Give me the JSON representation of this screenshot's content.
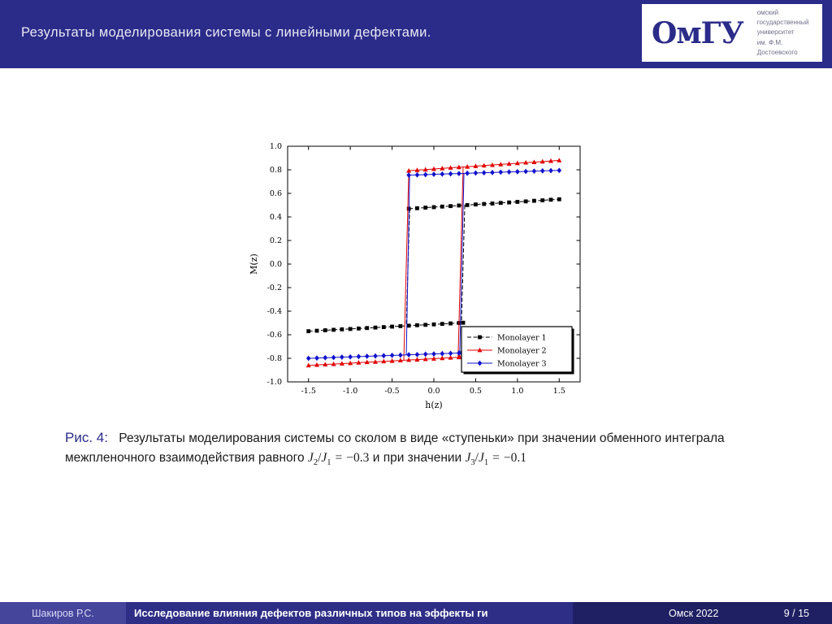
{
  "colors": {
    "accent": "#2b2b8a",
    "header_bg": "#2b2b8a",
    "footer_author_bg": "#45459c",
    "footer_title_bg": "#2e2e86",
    "footer_right_bg": "#1f1f63",
    "series_black": "#000000",
    "series_red": "#e00000",
    "series_blue": "#1212cc"
  },
  "header": {
    "title": "Результаты моделирования системы с линейными дефектами."
  },
  "logo": {
    "glyph": "ОмГУ",
    "lines": [
      "омский",
      "государственный",
      "университет",
      "им. Ф.М. Достоевского"
    ]
  },
  "caption": {
    "label": "Рис. 4:",
    "part1": "Результаты моделирования системы со сколом в виде «ступеньки» при значении обменного интеграла межпленочного взаимодействия равного",
    "math1": {
      "a": "J",
      "a_sub": "2",
      "slash": "/",
      "b": "J",
      "b_sub": "1",
      "eq": "=",
      "value": "−0.3"
    },
    "part2": "и при значении",
    "math2": {
      "a": "J",
      "a_sub": "3",
      "slash": "/",
      "b": "J",
      "b_sub": "1",
      "eq": "=",
      "value": "−0.1"
    }
  },
  "footer": {
    "author": "Шакиров Р.С.",
    "talk_title": "Исследование влияния дефектов различных типов на эффекты ги",
    "venue": "Омск 2022",
    "page": "9 / 15"
  },
  "chart_data": {
    "type": "line",
    "title": "",
    "xlabel": "h(z)",
    "ylabel": "M(z)",
    "xlim": [
      -1.75,
      1.75
    ],
    "ylim": [
      -1.0,
      1.0
    ],
    "grid": false,
    "xticks": [
      -1.5,
      -1.0,
      -0.5,
      0.0,
      0.5,
      1.0,
      1.5
    ],
    "xtick_labels": [
      "-1.5",
      "-1.0",
      "-0.5",
      "0.0",
      "0.5",
      "1.0",
      "1.5"
    ],
    "yticks": [
      -1.0,
      -0.8,
      -0.6,
      -0.4,
      -0.2,
      0.0,
      0.2,
      0.4,
      0.6,
      0.8,
      1.0
    ],
    "ytick_labels": [
      "-1.0",
      "-0.8",
      "-0.6",
      "-0.4",
      "-0.2",
      "0.0",
      "0.2",
      "0.4",
      "0.6",
      "0.8",
      "1.0"
    ],
    "legend": {
      "position": "lower right",
      "entries": [
        "Monolayer 1",
        "Monolayer 2",
        "Monolayer 3"
      ]
    },
    "series": [
      {
        "name": "Monolayer 1",
        "color": "#000000",
        "marker": "square",
        "dash": "5 2.6",
        "branches": [
          {
            "x": [
              -1.5,
              -1.4,
              -1.3,
              -1.2,
              -1.1,
              -1.0,
              -0.9,
              -0.8,
              -0.7,
              -0.6,
              -0.5,
              -0.4,
              -0.3,
              -0.2,
              -0.1,
              0.0,
              0.1,
              0.2,
              0.3,
              0.35
            ],
            "y": [
              -0.57,
              -0.566,
              -0.562,
              -0.558,
              -0.554,
              -0.551,
              -0.547,
              -0.543,
              -0.539,
              -0.535,
              -0.531,
              -0.527,
              -0.523,
              -0.519,
              -0.516,
              -0.512,
              -0.508,
              -0.504,
              -0.5,
              -0.498
            ]
          },
          {
            "x": [
              -0.3,
              -0.2,
              -0.1,
              0.0,
              0.1,
              0.2,
              0.3,
              0.4,
              0.5,
              0.6,
              0.7,
              0.8,
              0.9,
              1.0,
              1.1,
              1.2,
              1.3,
              1.4,
              1.5
            ],
            "y": [
              0.47,
              0.474,
              0.479,
              0.483,
              0.488,
              0.492,
              0.497,
              0.501,
              0.506,
              0.51,
              0.514,
              0.519,
              0.523,
              0.528,
              0.532,
              0.537,
              0.541,
              0.546,
              0.55
            ]
          }
        ],
        "transitions": [
          [
            -0.29,
            0.47,
            -0.33,
            -0.522
          ],
          [
            0.37,
            0.5,
            0.33,
            -0.499
          ]
        ]
      },
      {
        "name": "Monolayer 2",
        "color": "#e00000",
        "marker": "triangle",
        "dash": null,
        "branches": [
          {
            "x": [
              -1.5,
              -1.4,
              -1.3,
              -1.2,
              -1.1,
              -1.0,
              -0.9,
              -0.8,
              -0.7,
              -0.6,
              -0.5,
              -0.4,
              -0.3,
              -0.2,
              -0.1,
              0.0,
              0.1,
              0.2,
              0.3,
              0.31
            ],
            "y": [
              -0.86,
              -0.856,
              -0.852,
              -0.849,
              -0.845,
              -0.841,
              -0.837,
              -0.833,
              -0.83,
              -0.826,
              -0.822,
              -0.818,
              -0.814,
              -0.811,
              -0.807,
              -0.803,
              -0.799,
              -0.795,
              -0.791,
              -0.789
            ]
          },
          {
            "x": [
              -0.3,
              -0.2,
              -0.1,
              0.0,
              0.1,
              0.2,
              0.3,
              0.4,
              0.5,
              0.6,
              0.7,
              0.8,
              0.9,
              1.0,
              1.1,
              1.2,
              1.3,
              1.4,
              1.5
            ],
            "y": [
              0.792,
              0.797,
              0.802,
              0.807,
              0.812,
              0.817,
              0.822,
              0.826,
              0.831,
              0.836,
              0.841,
              0.846,
              0.851,
              0.856,
              0.861,
              0.865,
              0.87,
              0.875,
              0.88
            ]
          }
        ],
        "transitions": [
          [
            -0.3,
            0.792,
            -0.36,
            -0.815
          ],
          [
            0.35,
            0.824,
            0.29,
            -0.79
          ]
        ]
      },
      {
        "name": "Monolayer 3",
        "color": "#1212cc",
        "marker": "diamond",
        "dash": null,
        "branches": [
          {
            "x": [
              -1.5,
              -1.4,
              -1.3,
              -1.2,
              -1.1,
              -1.0,
              -0.9,
              -0.8,
              -0.7,
              -0.6,
              -0.5,
              -0.4,
              -0.3,
              -0.2,
              -0.1,
              0.0,
              0.1,
              0.2,
              0.3,
              0.33
            ],
            "y": [
              -0.8,
              -0.798,
              -0.795,
              -0.793,
              -0.79,
              -0.788,
              -0.785,
              -0.783,
              -0.78,
              -0.778,
              -0.775,
              -0.773,
              -0.77,
              -0.768,
              -0.765,
              -0.763,
              -0.76,
              -0.758,
              -0.755,
              -0.754
            ]
          },
          {
            "x": [
              -0.3,
              -0.2,
              -0.1,
              0.0,
              0.1,
              0.2,
              0.3,
              0.4,
              0.5,
              0.6,
              0.7,
              0.8,
              0.9,
              1.0,
              1.1,
              1.2,
              1.3,
              1.4,
              1.5
            ],
            "y": [
              0.755,
              0.757,
              0.759,
              0.762,
              0.764,
              0.766,
              0.768,
              0.771,
              0.773,
              0.775,
              0.777,
              0.78,
              0.782,
              0.784,
              0.786,
              0.789,
              0.791,
              0.793,
              0.795
            ]
          }
        ],
        "transitions": [
          [
            -0.29,
            0.755,
            -0.33,
            -0.771
          ],
          [
            0.36,
            0.77,
            0.31,
            -0.755
          ]
        ]
      }
    ]
  }
}
